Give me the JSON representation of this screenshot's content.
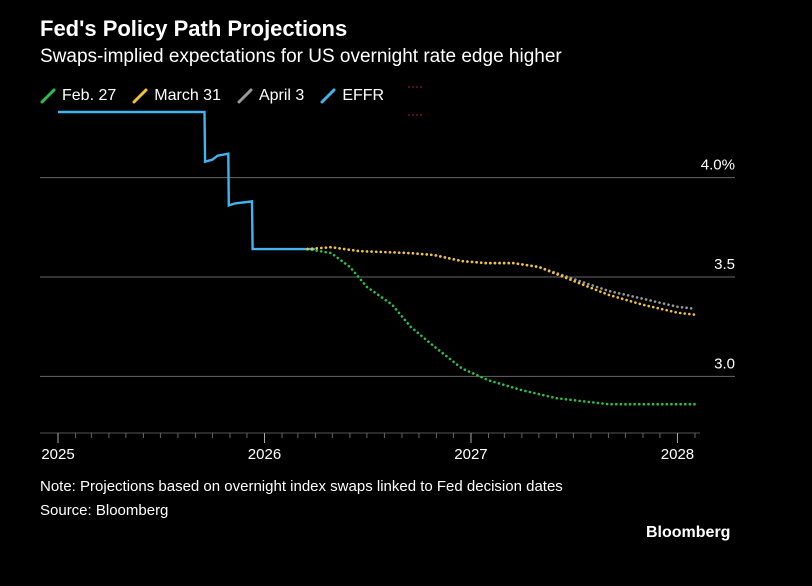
{
  "chart_data": {
    "type": "line",
    "title": "Fed's Policy Path Projections",
    "subtitle": "Swaps-implied expectations for US overnight rate edge higher",
    "xlabel": "",
    "ylabel": "",
    "x_ticks": [
      "2025",
      "2026",
      "2027",
      "2028"
    ],
    "y_ticks": [
      "3.0",
      "3.5",
      "4.0%"
    ],
    "xlim": [
      "2025-01-01",
      "2028-02-01"
    ],
    "ylim": [
      2.73,
      4.33
    ],
    "grid": true,
    "legend_position": "top-left",
    "series": [
      {
        "name": "EFFR",
        "color": "#40b4f0",
        "style": "solid-step",
        "points": [
          [
            "2025-01-01",
            4.33
          ],
          [
            "2025-09-17",
            4.33
          ],
          [
            "2025-09-18",
            4.08
          ],
          [
            "2025-10-01",
            4.09
          ],
          [
            "2025-10-10",
            4.11
          ],
          [
            "2025-10-29",
            4.12
          ],
          [
            "2025-10-30",
            3.86
          ],
          [
            "2025-11-10",
            3.87
          ],
          [
            "2025-12-10",
            3.88
          ],
          [
            "2025-12-11",
            3.64
          ],
          [
            "2026-03-31",
            3.64
          ]
        ]
      },
      {
        "name": "Feb. 27",
        "color": "#27c04a",
        "style": "dotted",
        "points": [
          [
            "2026-03-18",
            3.64
          ],
          [
            "2026-04-29",
            3.62
          ],
          [
            "2026-06-01",
            3.55
          ],
          [
            "2026-07-01",
            3.45
          ],
          [
            "2026-08-15",
            3.36
          ],
          [
            "2026-09-16",
            3.25
          ],
          [
            "2026-10-28",
            3.15
          ],
          [
            "2026-12-16",
            3.04
          ],
          [
            "2027-02-01",
            2.98
          ],
          [
            "2027-04-01",
            2.93
          ],
          [
            "2027-06-01",
            2.89
          ],
          [
            "2027-09-01",
            2.86
          ],
          [
            "2028-02-01",
            2.86
          ]
        ]
      },
      {
        "name": "March 31",
        "color": "#f5c42b",
        "style": "dotted",
        "points": [
          [
            "2026-03-18",
            3.64
          ],
          [
            "2026-04-29",
            3.65
          ],
          [
            "2026-06-17",
            3.63
          ],
          [
            "2026-09-16",
            3.62
          ],
          [
            "2026-10-28",
            3.61
          ],
          [
            "2026-12-16",
            3.58
          ],
          [
            "2027-01-27",
            3.57
          ],
          [
            "2027-03-17",
            3.57
          ],
          [
            "2027-05-01",
            3.55
          ],
          [
            "2027-07-01",
            3.48
          ],
          [
            "2027-09-01",
            3.41
          ],
          [
            "2027-11-01",
            3.36
          ],
          [
            "2028-01-01",
            3.32
          ],
          [
            "2028-02-01",
            3.31
          ]
        ]
      },
      {
        "name": "April 3",
        "color": "#9a9a9a",
        "style": "dotted",
        "points": [
          [
            "2026-03-18",
            3.64
          ],
          [
            "2026-04-29",
            3.65
          ],
          [
            "2026-06-17",
            3.63
          ],
          [
            "2026-09-16",
            3.62
          ],
          [
            "2026-10-28",
            3.61
          ],
          [
            "2026-12-16",
            3.58
          ],
          [
            "2027-01-27",
            3.57
          ],
          [
            "2027-03-17",
            3.57
          ],
          [
            "2027-05-01",
            3.55
          ],
          [
            "2027-07-01",
            3.49
          ],
          [
            "2027-09-01",
            3.43
          ],
          [
            "2027-11-01",
            3.39
          ],
          [
            "2028-01-01",
            3.35
          ],
          [
            "2028-02-01",
            3.34
          ]
        ]
      }
    ],
    "legend_order": [
      "Feb. 27",
      "March 31",
      "April 3",
      "EFFR"
    ],
    "note": "Note: Projections based on overnight index swaps linked to Fed decision dates",
    "source": "Source: Bloomberg"
  },
  "brand": "Bloomberg",
  "colors": {
    "background": "#000000",
    "text": "#ffffff",
    "grid": "#666666"
  }
}
